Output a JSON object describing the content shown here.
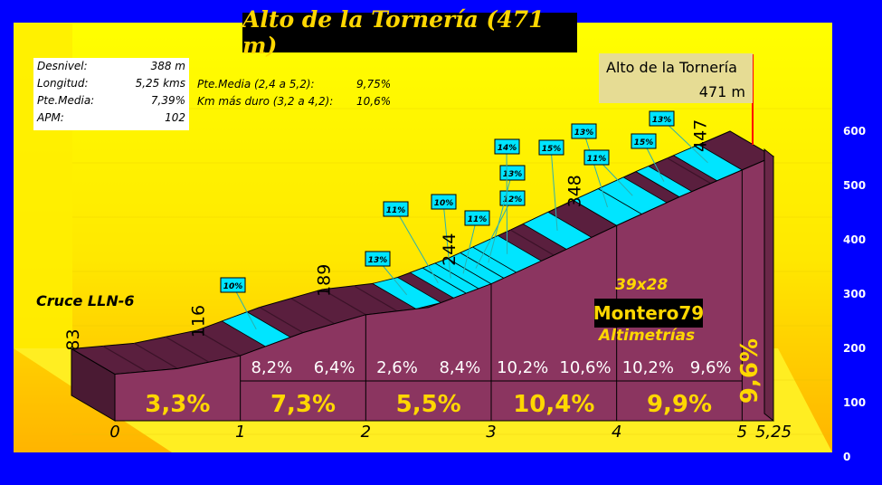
{
  "header": {
    "title": "Alto de la Tornería (471 m)"
  },
  "stats": [
    {
      "label": "Desnivel:",
      "value": "388 m"
    },
    {
      "label": "Longitud:",
      "value": "5,25 kms"
    },
    {
      "label": "Pte.Media:",
      "value": "7,39%"
    },
    {
      "label": "APM:",
      "value": "102"
    }
  ],
  "media": [
    {
      "label": "Pte.Media (2,4 a 5,2):",
      "value": "9,75%"
    },
    {
      "label": "Km más duro (3,2 a 4,2):",
      "value": "10,6%"
    }
  ],
  "summit": {
    "name": "Alto de la Tornería",
    "altitude": "471 m"
  },
  "start_label": "Cruce LLN-6",
  "brand": {
    "top": "39x28",
    "name": "Montero79",
    "bottom": "Altimetrías"
  },
  "colors": {
    "background": "#0000ff",
    "wall": "#ffee00",
    "profile": "#8b3560",
    "steep": "#00e5ff",
    "labels": "#ffd700"
  },
  "chart_data": {
    "type": "area",
    "title": "Alto de la Tornería (471 m)",
    "x_ticks": [
      "0",
      "1",
      "2",
      "3",
      "4",
      "5",
      "5,25"
    ],
    "y_ticks": [
      "0",
      "100",
      "200",
      "300",
      "400",
      "500",
      "600"
    ],
    "ylim": [
      0,
      600
    ],
    "xlim": [
      0,
      5.25
    ],
    "profile": [
      {
        "x": 0,
        "y": 83
      },
      {
        "x": 0.5,
        "y": 93
      },
      {
        "x": 1,
        "y": 116
      },
      {
        "x": 1.5,
        "y": 157
      },
      {
        "x": 2,
        "y": 189
      },
      {
        "x": 2.5,
        "y": 202
      },
      {
        "x": 3,
        "y": 244
      },
      {
        "x": 3.5,
        "y": 295
      },
      {
        "x": 4,
        "y": 348
      },
      {
        "x": 4.5,
        "y": 399
      },
      {
        "x": 5,
        "y": 447
      },
      {
        "x": 5.25,
        "y": 471
      }
    ],
    "point_labels": [
      {
        "x": 0,
        "text": "83"
      },
      {
        "x": 1,
        "text": "116"
      },
      {
        "x": 2,
        "text": "189"
      },
      {
        "x": 3,
        "text": "244"
      },
      {
        "x": 4,
        "text": "348"
      },
      {
        "x": 5,
        "text": "447"
      }
    ],
    "half_km_gradients": [
      "8,2%",
      "6,4%",
      "2,6%",
      "8,4%",
      "10,2%",
      "10,6%",
      "10,2%",
      "9,6%"
    ],
    "km_gradients": [
      "3,3%",
      "7,3%",
      "5,5%",
      "10,4%",
      "9,9%",
      "9,6%"
    ],
    "steep_sections": [
      {
        "x0": 1.2,
        "x1": 1.4
      },
      {
        "x0": 2.4,
        "x1": 2.6
      },
      {
        "x0": 2.7,
        "x1": 2.8
      },
      {
        "x0": 2.8,
        "x1": 2.9
      },
      {
        "x0": 2.9,
        "x1": 3.0
      },
      {
        "x0": 3.0,
        "x1": 3.1
      },
      {
        "x0": 3.1,
        "x1": 3.2
      },
      {
        "x0": 3.2,
        "x1": 3.4
      },
      {
        "x0": 3.6,
        "x1": 3.8
      },
      {
        "x0": 4.0,
        "x1": 4.2
      },
      {
        "x0": 4.2,
        "x1": 4.4
      },
      {
        "x0": 4.5,
        "x1": 4.6
      },
      {
        "x0": 4.8,
        "x1": 5.0
      }
    ],
    "callouts": [
      "10%",
      "13%",
      "11%",
      "10%",
      "11%",
      "12%",
      "13%",
      "14%",
      "15%",
      "13%",
      "11%",
      "15%",
      "13%"
    ]
  }
}
